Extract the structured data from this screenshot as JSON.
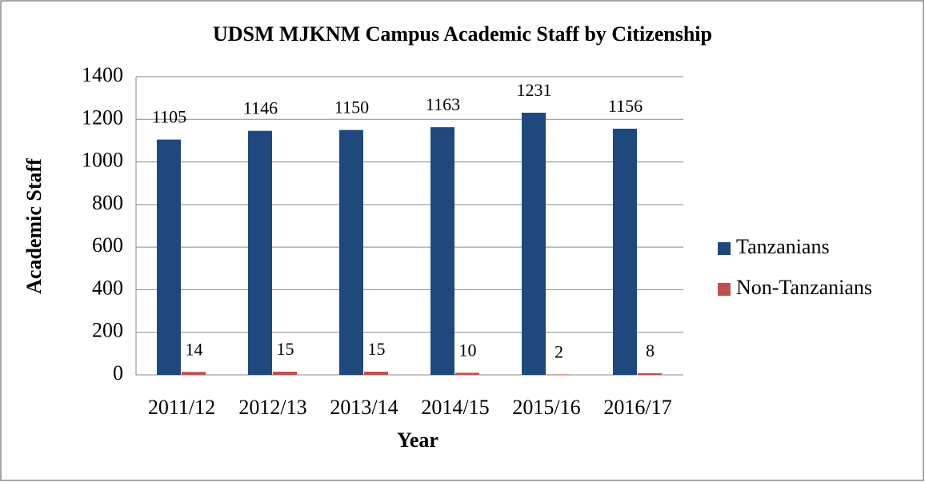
{
  "chart_data": {
    "type": "bar",
    "title": "UDSM MJKNM Campus Academic Staff by Citizenship",
    "x_label": "Year",
    "y_label": "Academic Staff",
    "categories": [
      "2011/12",
      "2012/13",
      "2013/14",
      "2014/15",
      "2015/16",
      "2016/17"
    ],
    "series": [
      {
        "name": "Tanzanians",
        "color": "#1f497d",
        "values": [
          1105,
          1146,
          1150,
          1163,
          1231,
          1156
        ]
      },
      {
        "name": "Non-Tanzanians",
        "color": "#c0504d",
        "values": [
          14,
          15,
          15,
          10,
          2,
          8
        ]
      }
    ],
    "ylim": [
      0,
      1400
    ],
    "yticks": [
      0,
      200,
      400,
      600,
      800,
      1000,
      1200,
      1400
    ],
    "grid": true,
    "legend": "right"
  }
}
